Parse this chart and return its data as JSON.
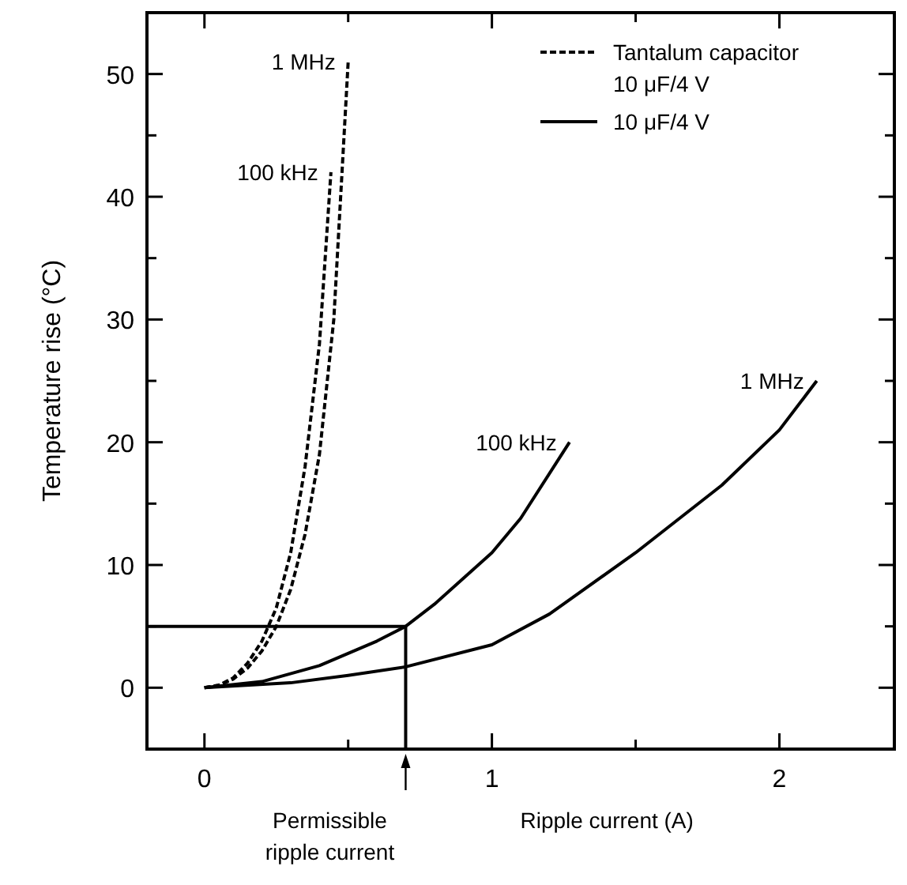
{
  "chart_data": {
    "type": "line",
    "xlabel": "Ripple current (A)",
    "ylabel": "Temperature rise (°C)",
    "xlim": [
      -0.2,
      2.4
    ],
    "ylim": [
      -5,
      55
    ],
    "xticks": [
      0,
      {
        "value": 0.5,
        "label": null
      },
      1,
      {
        "value": 1.5,
        "label": null
      },
      2
    ],
    "yticks": [
      0,
      {
        "value": 5,
        "label": null
      },
      10,
      {
        "value": 15,
        "label": null
      },
      20,
      {
        "value": 25,
        "label": null
      },
      30,
      {
        "value": 35,
        "label": null
      },
      40,
      {
        "value": 45,
        "label": null
      },
      50
    ],
    "grid": false,
    "marker": "none",
    "legend": "top right",
    "series": [
      {
        "name": "100 kHz",
        "color": "#000000",
        "line_style": "dashed",
        "x": [
          0,
          0.05,
          0.1,
          0.15,
          0.2,
          0.25,
          0.3,
          0.35,
          0.4,
          0.44
        ],
        "values": [
          0,
          0.2,
          0.8,
          2,
          3.8,
          6.5,
          11,
          18,
          28,
          42
        ]
      },
      {
        "name": "1 MHz",
        "color": "#000000",
        "line_style": "dashed",
        "x": [
          0,
          0.05,
          0.1,
          0.15,
          0.2,
          0.25,
          0.3,
          0.35,
          0.4,
          0.45,
          0.5
        ],
        "values": [
          0,
          0.2,
          0.7,
          1.6,
          3,
          5,
          8,
          12.5,
          19,
          30,
          51
        ]
      },
      {
        "name": "100 kHz",
        "color": "#000000",
        "line_style": "solid",
        "x": [
          0,
          0.2,
          0.4,
          0.6,
          0.7,
          0.8,
          1,
          1.1,
          1.27
        ],
        "values": [
          0,
          0.5,
          1.8,
          3.8,
          5,
          6.8,
          11,
          13.8,
          20
        ]
      },
      {
        "name": "1 MHz",
        "color": "#000000",
        "line_style": "solid",
        "x": [
          0,
          0.3,
          0.5,
          0.7,
          1,
          1.2,
          1.5,
          1.8,
          2,
          2.13
        ],
        "values": [
          0,
          0.4,
          1,
          1.7,
          3.5,
          6,
          11,
          16.5,
          21,
          25
        ]
      }
    ],
    "ref_lines": [
      {
        "axis": "x",
        "value": 0.7
      },
      {
        "axis": "y",
        "value": 5
      }
    ],
    "annotations": [
      "Tantalum capacitor 10 μF/4 V",
      "10 μF/4 V",
      {
        "text": "Permissible ripple current",
        "x": 0.7,
        "y": -5
      }
    ]
  }
}
